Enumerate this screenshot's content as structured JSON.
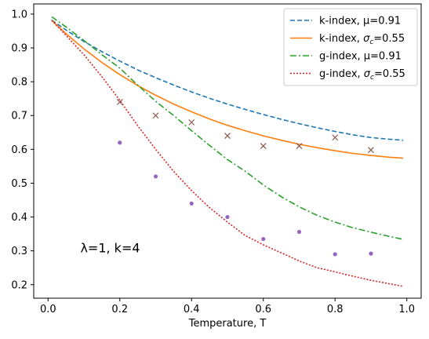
{
  "chart_data": {
    "type": "line",
    "xlabel": "Temperature, T",
    "ylabel": "",
    "xlim": [
      -0.04,
      1.04
    ],
    "ylim": [
      0.16,
      1.03
    ],
    "xticks": [
      0.0,
      0.2,
      0.4,
      0.6,
      0.8,
      1.0
    ],
    "yticks": [
      0.2,
      0.3,
      0.4,
      0.5,
      0.6,
      0.7,
      0.8,
      0.9,
      1.0
    ],
    "grid": false,
    "legend_position": "top-right",
    "annotation": {
      "text": "λ=1, k=4",
      "x": 0.09,
      "y": 0.31
    },
    "series": [
      {
        "name": "k-index, μ=0.91",
        "color": "#1f77b4",
        "style": "dashed",
        "x": [
          0.01,
          0.05,
          0.1,
          0.15,
          0.2,
          0.25,
          0.3,
          0.35,
          0.4,
          0.45,
          0.5,
          0.55,
          0.6,
          0.65,
          0.7,
          0.75,
          0.8,
          0.85,
          0.9,
          0.95,
          0.99
        ],
        "y": [
          0.982,
          0.953,
          0.919,
          0.889,
          0.861,
          0.835,
          0.812,
          0.79,
          0.77,
          0.751,
          0.734,
          0.718,
          0.703,
          0.689,
          0.676,
          0.664,
          0.653,
          0.643,
          0.635,
          0.63,
          0.627
        ]
      },
      {
        "name": "k-index, σc=0.55",
        "name_main": "k-index, ",
        "name_sigma": "σ",
        "name_sub": "c",
        "name_tail": "=0.55",
        "color": "#ff7f0e",
        "style": "solid",
        "x": [
          0.01,
          0.05,
          0.1,
          0.15,
          0.2,
          0.25,
          0.3,
          0.35,
          0.4,
          0.45,
          0.5,
          0.55,
          0.6,
          0.65,
          0.7,
          0.75,
          0.8,
          0.85,
          0.9,
          0.95,
          0.99
        ],
        "y": [
          0.981,
          0.942,
          0.897,
          0.857,
          0.821,
          0.789,
          0.76,
          0.734,
          0.711,
          0.69,
          0.671,
          0.655,
          0.64,
          0.627,
          0.615,
          0.605,
          0.596,
          0.588,
          0.582,
          0.577,
          0.574
        ]
      },
      {
        "name": "g-index, μ=0.91",
        "color": "#2ca02c",
        "style": "dashdot",
        "x": [
          0.01,
          0.05,
          0.1,
          0.15,
          0.2,
          0.25,
          0.3,
          0.35,
          0.4,
          0.45,
          0.5,
          0.55,
          0.6,
          0.65,
          0.7,
          0.75,
          0.8,
          0.85,
          0.9,
          0.95,
          0.99
        ],
        "y": [
          0.992,
          0.962,
          0.922,
          0.88,
          0.84,
          0.79,
          0.742,
          0.7,
          0.655,
          0.612,
          0.57,
          0.535,
          0.495,
          0.46,
          0.43,
          0.405,
          0.385,
          0.368,
          0.355,
          0.343,
          0.334
        ]
      },
      {
        "name": "g-index, σc=0.55",
        "name_main": "g-index, ",
        "name_sigma": "σ",
        "name_sub": "c",
        "name_tail": "=0.55",
        "color": "#d62728",
        "style": "dotted",
        "x": [
          0.01,
          0.05,
          0.1,
          0.15,
          0.2,
          0.25,
          0.3,
          0.35,
          0.4,
          0.45,
          0.5,
          0.55,
          0.6,
          0.65,
          0.7,
          0.75,
          0.8,
          0.85,
          0.9,
          0.95,
          0.99
        ],
        "y": [
          0.982,
          0.937,
          0.88,
          0.815,
          0.745,
          0.67,
          0.6,
          0.535,
          0.478,
          0.428,
          0.385,
          0.345,
          0.318,
          0.294,
          0.27,
          0.25,
          0.238,
          0.225,
          0.213,
          0.203,
          0.195
        ]
      }
    ],
    "markers": [
      {
        "marker": "x",
        "color": "#8c564b",
        "x": [
          0.2,
          0.3,
          0.4,
          0.5,
          0.6,
          0.7,
          0.8,
          0.9
        ],
        "y": [
          0.74,
          0.7,
          0.68,
          0.64,
          0.61,
          0.61,
          0.635,
          0.598
        ]
      },
      {
        "marker": "dot",
        "color": "#9467bd",
        "x": [
          0.2,
          0.3,
          0.4,
          0.5,
          0.6,
          0.7,
          0.8,
          0.9
        ],
        "y": [
          0.62,
          0.52,
          0.44,
          0.4,
          0.335,
          0.356,
          0.29,
          0.292
        ]
      }
    ]
  }
}
